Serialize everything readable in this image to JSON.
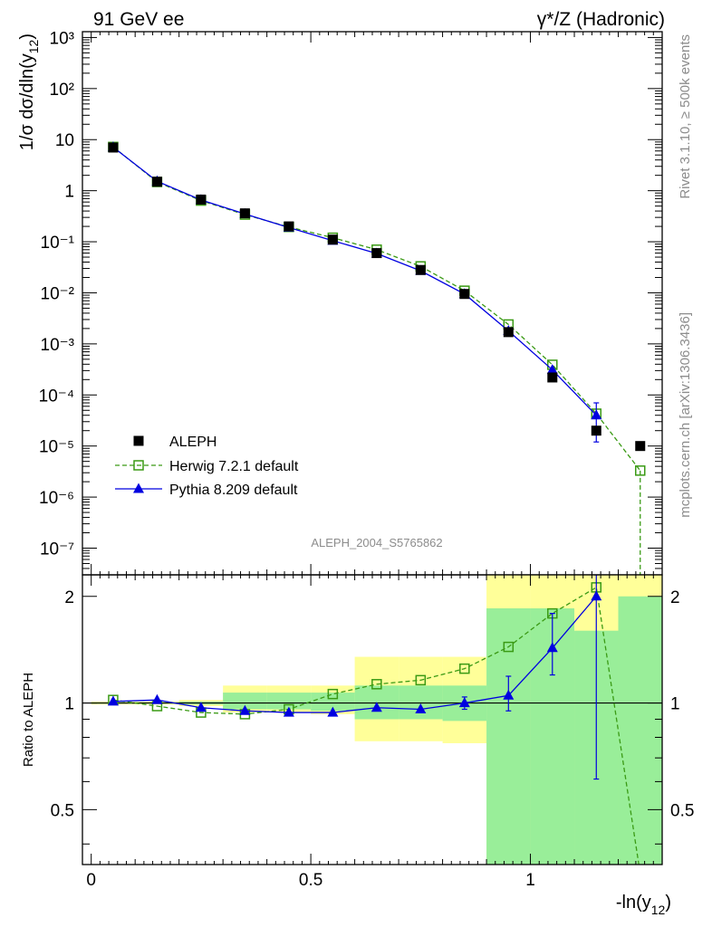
{
  "header": {
    "left": "91 GeV ee",
    "right": "γ*/Z (Hadronic)"
  },
  "side_labels": {
    "rivet": "Rivet 3.1.10, ≥ 500k events",
    "mcplots": "mcplots.cern.ch [arXiv:1306.3436]"
  },
  "watermark": "ALEPH_2004_S5765862",
  "chart_data": [
    {
      "type": "scatter",
      "title": "",
      "ylabel": "1/σ dσ/dln(y12)",
      "yscale": "log",
      "xlim": [
        -0.02,
        1.3
      ],
      "ylim": [
        3e-08,
        1300
      ],
      "y_ticks": [
        "10⁻⁷",
        "10⁻⁶",
        "10⁻⁵",
        "10⁻⁴",
        "10⁻³",
        "10⁻²",
        "10⁻¹",
        "1",
        "10",
        "10²",
        "10³"
      ],
      "legend": {
        "placement": "bottom-left"
      },
      "x": [
        0.05,
        0.15,
        0.25,
        0.35,
        0.45,
        0.55,
        0.65,
        0.75,
        0.85,
        0.95,
        1.05,
        1.15,
        1.25
      ],
      "series": [
        {
          "name": "ALEPH",
          "color": "#000000",
          "marker": "filled-square",
          "values": [
            7.0,
            1.5,
            0.67,
            0.36,
            0.2,
            0.11,
            0.06,
            0.028,
            0.0095,
            0.0017,
            0.00022,
            2e-05,
            1e-05
          ]
        },
        {
          "name": "Herwig 7.2.1 default",
          "color": "#3a9a14",
          "marker": "open-square",
          "dashed": true,
          "values": [
            7.2,
            1.48,
            0.64,
            0.34,
            0.195,
            0.12,
            0.07,
            0.033,
            0.011,
            0.0024,
            0.00039,
            4.3e-05,
            3.3e-06
          ]
        },
        {
          "name": "Pythia 8.209 default",
          "color": "#0000e0",
          "marker": "filled-triangle",
          "values": [
            7.1,
            1.53,
            0.66,
            0.35,
            0.19,
            0.105,
            0.059,
            0.027,
            0.0095,
            0.0018,
            0.00031,
            4e-05
          ],
          "err_high": [
            null,
            null,
            null,
            null,
            null,
            null,
            null,
            null,
            null,
            null,
            null,
            7e-05
          ],
          "err_low": [
            null,
            null,
            null,
            null,
            null,
            null,
            null,
            null,
            null,
            null,
            null,
            1.2e-05
          ]
        }
      ]
    },
    {
      "type": "scatter",
      "xlabel": "-ln(y12)",
      "ylabel": "Ratio to ALEPH",
      "xlim": [
        -0.02,
        1.3
      ],
      "ylim": [
        0.35,
        2.3
      ],
      "x_ticks": [
        "0",
        "0.5",
        "1"
      ],
      "y_ticks": [
        "0.5",
        "1",
        "2"
      ],
      "bands": {
        "edges": [
          0.0,
          0.1,
          0.2,
          0.3,
          0.4,
          0.5,
          0.6,
          0.7,
          0.8,
          0.9,
          1.0,
          1.1,
          1.2,
          1.3
        ],
        "total_lo": [
          0.99,
          0.99,
          0.98,
          0.94,
          0.94,
          0.93,
          0.78,
          0.78,
          0.77,
          0.35,
          0.35,
          0.35,
          0.35
        ],
        "total_hi": [
          1.01,
          1.01,
          1.02,
          1.12,
          1.12,
          1.12,
          1.35,
          1.35,
          1.35,
          2.3,
          2.3,
          2.3,
          2.3
        ],
        "stat_lo": [
          0.995,
          0.995,
          0.99,
          0.96,
          0.96,
          0.95,
          0.9,
          0.9,
          0.89,
          0.35,
          0.35,
          0.35,
          0.35
        ],
        "stat_hi": [
          1.005,
          1.005,
          1.01,
          1.07,
          1.07,
          1.07,
          1.12,
          1.12,
          1.12,
          1.85,
          1.85,
          1.6,
          2.0
        ]
      },
      "x": [
        0.05,
        0.15,
        0.25,
        0.35,
        0.45,
        0.55,
        0.65,
        0.75,
        0.85,
        0.95,
        1.05,
        1.15,
        1.25
      ],
      "series": [
        {
          "name": "Herwig 7.2.1 default",
          "color": "#3a9a14",
          "marker": "open-square",
          "dashed": true,
          "values": [
            1.02,
            0.98,
            0.94,
            0.93,
            0.96,
            1.06,
            1.13,
            1.16,
            1.25,
            1.44,
            1.79,
            2.12,
            0.33
          ]
        },
        {
          "name": "Pythia 8.209 default",
          "color": "#0000e0",
          "marker": "filled-triangle",
          "values": [
            1.01,
            1.02,
            0.97,
            0.95,
            0.94,
            0.94,
            0.97,
            0.96,
            1.0,
            1.05,
            1.43,
            2.0
          ],
          "err_high": [
            null,
            null,
            null,
            null,
            null,
            null,
            null,
            null,
            1.04,
            1.19,
            1.79,
            2.3
          ],
          "err_low": [
            null,
            null,
            null,
            null,
            null,
            null,
            null,
            null,
            0.96,
            0.95,
            1.2,
            0.61
          ]
        }
      ]
    }
  ]
}
